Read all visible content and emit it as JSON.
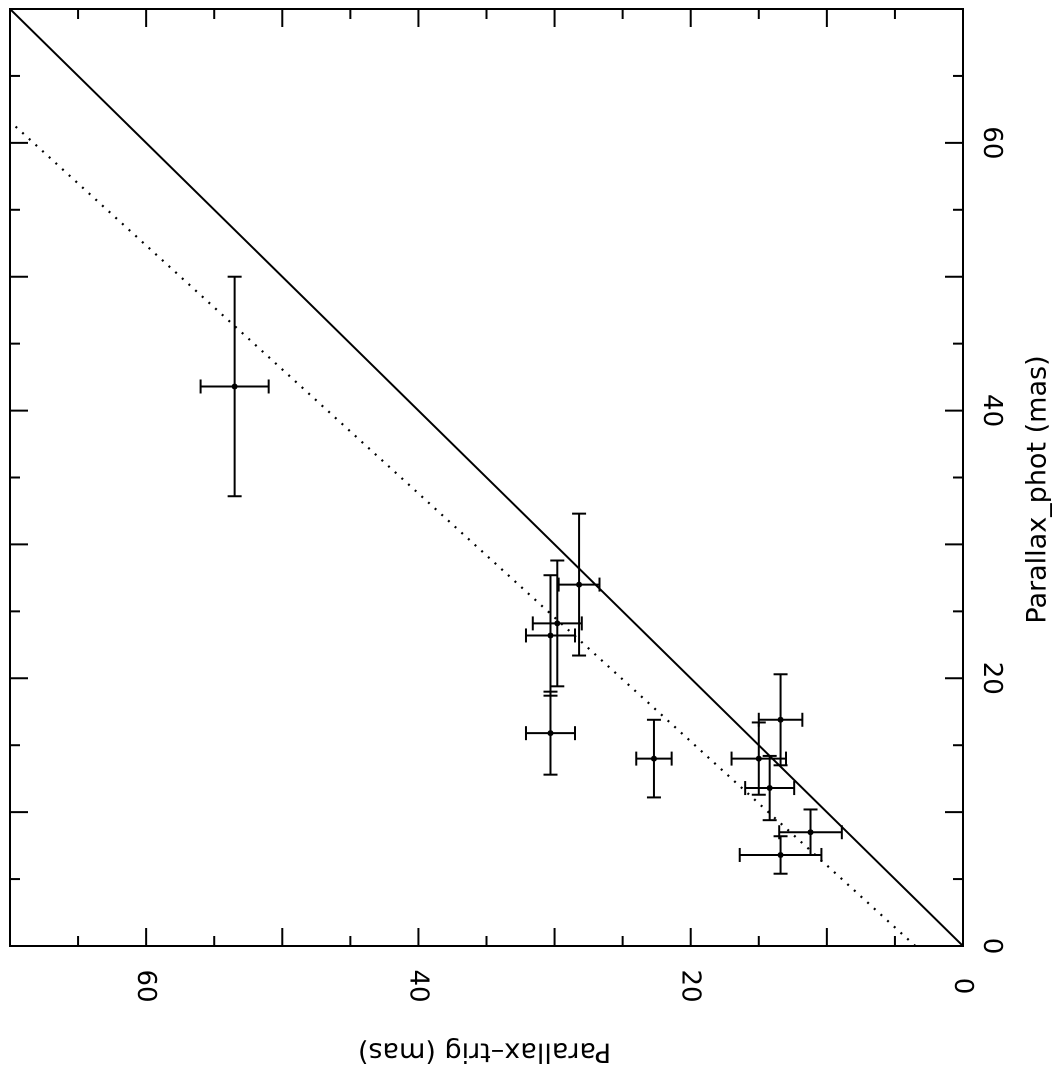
{
  "chart_data": {
    "type": "scatter",
    "orientation": "rotated-90",
    "xlabel": "Parallax–trig (mas)",
    "ylabel": "Parallax_phot (mas)",
    "xlim": [
      0,
      70
    ],
    "ylim": [
      0,
      70
    ],
    "x_ticks": [
      0,
      20,
      40,
      60
    ],
    "y_ticks": [
      0,
      20,
      40,
      60
    ],
    "grid": false,
    "series": [
      {
        "style": "points-with-error-bars",
        "points": [
          {
            "x": 53.5,
            "y": 41.8,
            "xerr": 2.5,
            "yerr": 8.2
          },
          {
            "x": 28.2,
            "y": 27.0,
            "xerr": 1.5,
            "yerr": 5.3
          },
          {
            "x": 29.8,
            "y": 24.1,
            "xerr": 1.8,
            "yerr": 4.7
          },
          {
            "x": 30.3,
            "y": 23.2,
            "xerr": 1.8,
            "yerr": 4.5
          },
          {
            "x": 30.3,
            "y": 15.9,
            "xerr": 1.8,
            "yerr": 3.1
          },
          {
            "x": 22.7,
            "y": 14.0,
            "xerr": 1.3,
            "yerr": 2.9
          },
          {
            "x": 15.0,
            "y": 14.0,
            "xerr": 2.0,
            "yerr": 2.7
          },
          {
            "x": 13.4,
            "y": 16.9,
            "xerr": 1.6,
            "yerr": 3.4
          },
          {
            "x": 14.2,
            "y": 11.8,
            "xerr": 1.8,
            "yerr": 2.4
          },
          {
            "x": 11.2,
            "y": 8.5,
            "xerr": 2.3,
            "yerr": 1.7
          },
          {
            "x": 13.4,
            "y": 6.8,
            "xerr": 3.0,
            "yerr": 1.4
          }
        ]
      },
      {
        "style": "solid-line",
        "points": [
          {
            "x": 0,
            "y": 0
          },
          {
            "x": 70,
            "y": 70
          }
        ]
      },
      {
        "style": "dotted-line",
        "points": [
          {
            "x": 3.5,
            "y": 0
          },
          {
            "x": 70,
            "y": 61.6
          }
        ]
      }
    ]
  }
}
